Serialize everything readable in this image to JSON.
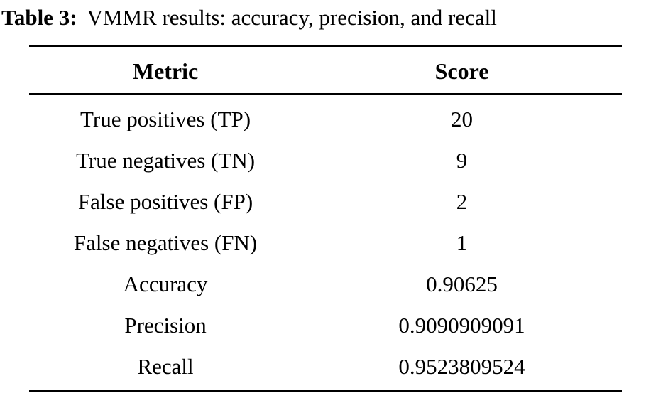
{
  "caption": {
    "label": "Table 3:",
    "text": "VMMR results: accuracy, precision, and recall"
  },
  "table": {
    "headers": {
      "metric": "Metric",
      "score": "Score"
    },
    "rows": [
      {
        "metric": "True positives (TP)",
        "score": "20"
      },
      {
        "metric": "True negatives (TN)",
        "score": "9"
      },
      {
        "metric": "False positives (FP)",
        "score": "2"
      },
      {
        "metric": "False negatives (FN)",
        "score": "1"
      },
      {
        "metric": "Accuracy",
        "score": "0.90625"
      },
      {
        "metric": "Precision",
        "score": "0.9090909091"
      },
      {
        "metric": "Recall",
        "score": "0.9523809524"
      }
    ]
  }
}
